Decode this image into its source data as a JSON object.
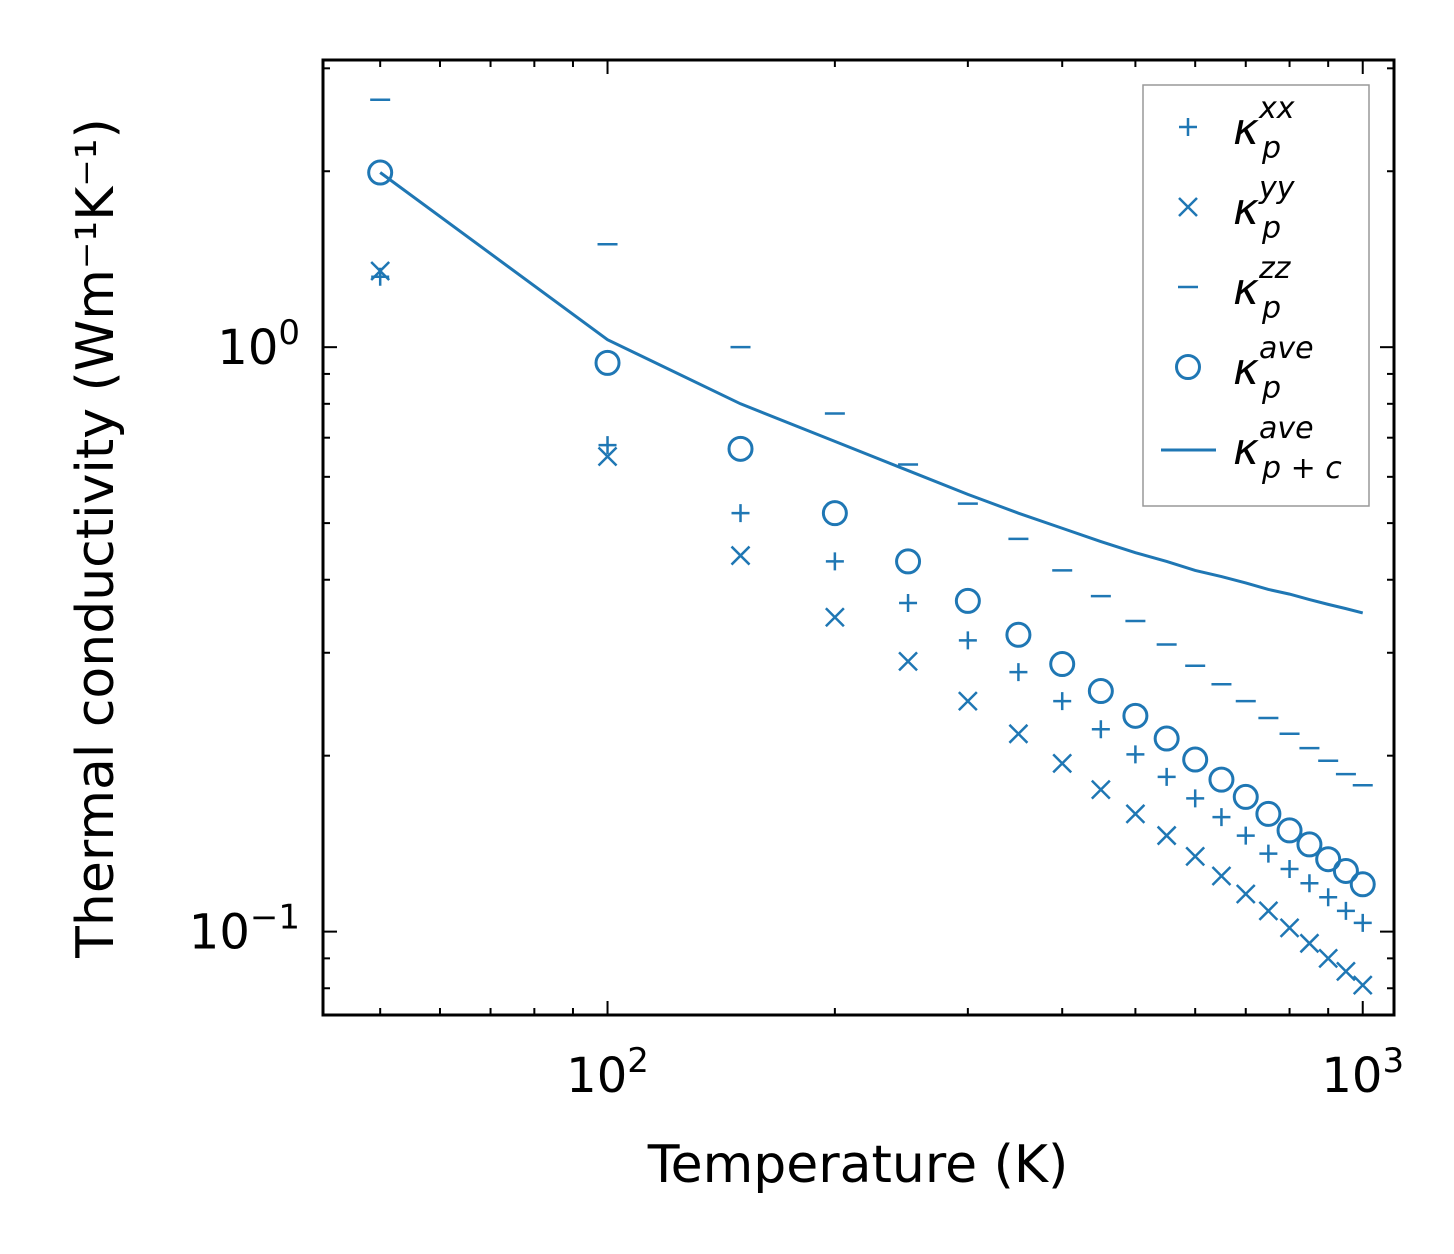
{
  "chart_data": {
    "type": "scatter",
    "title": "",
    "xlabel": "Temperature (K)",
    "ylabel": "Thermal conductivity (Wm⁻¹K⁻¹)",
    "xscale": "log",
    "yscale": "log",
    "xlim": [
      42,
      1100
    ],
    "ylim": [
      0.072,
      3.1
    ],
    "x_ticks": [
      {
        "value": 100,
        "base": "10",
        "exp": "2"
      },
      {
        "value": 1000,
        "base": "10",
        "exp": "3"
      }
    ],
    "y_ticks": [
      {
        "value": 0.1,
        "base": "10",
        "exp": "−1"
      },
      {
        "value": 1.0,
        "base": "10",
        "exp": "0"
      }
    ],
    "x": [
      50,
      100,
      150,
      200,
      250,
      300,
      350,
      400,
      450,
      500,
      550,
      600,
      650,
      700,
      750,
      800,
      850,
      900,
      950,
      1000
    ],
    "series": [
      {
        "name": "κ_p^xx",
        "symbol": "κ",
        "sub": "p",
        "sup": "xx",
        "marker": "plus",
        "values": [
          1.32,
          0.68,
          0.52,
          0.43,
          0.365,
          0.315,
          0.278,
          0.248,
          0.222,
          0.201,
          0.184,
          0.169,
          0.157,
          0.146,
          0.136,
          0.128,
          0.121,
          0.1145,
          0.1085,
          0.1035
        ]
      },
      {
        "name": "κ_p^yy",
        "symbol": "κ",
        "sub": "p",
        "sup": "yy",
        "marker": "x",
        "values": [
          1.35,
          0.65,
          0.44,
          0.345,
          0.29,
          0.248,
          0.218,
          0.194,
          0.175,
          0.159,
          0.146,
          0.1345,
          0.1245,
          0.116,
          0.1085,
          0.1015,
          0.0955,
          0.09,
          0.0855,
          0.081
        ]
      },
      {
        "name": "κ_p^zz",
        "symbol": "κ",
        "sub": "p",
        "sup": "zz",
        "marker": "hline",
        "values": [
          2.65,
          1.5,
          1.0,
          0.77,
          0.63,
          0.54,
          0.47,
          0.415,
          0.375,
          0.34,
          0.31,
          0.285,
          0.265,
          0.248,
          0.232,
          0.218,
          0.206,
          0.196,
          0.186,
          0.178
        ]
      },
      {
        "name": "κ_p^ave",
        "symbol": "κ",
        "sub": "p",
        "sup": "ave",
        "marker": "circle",
        "values": [
          1.99,
          0.94,
          0.67,
          0.52,
          0.43,
          0.368,
          0.322,
          0.287,
          0.258,
          0.234,
          0.214,
          0.197,
          0.182,
          0.17,
          0.159,
          0.149,
          0.141,
          0.133,
          0.127,
          0.1205
        ]
      },
      {
        "name": "κ_p+c^ave",
        "symbol": "κ",
        "sub": "p + c",
        "sup": "ave",
        "marker": "line",
        "values": [
          1.99,
          1.03,
          0.8,
          0.69,
          0.615,
          0.56,
          0.52,
          0.49,
          0.465,
          0.445,
          0.43,
          0.415,
          0.405,
          0.395,
          0.385,
          0.378,
          0.37,
          0.363,
          0.357,
          0.351
        ]
      }
    ],
    "color": "#1f77b4",
    "legend_position": "top-right"
  }
}
